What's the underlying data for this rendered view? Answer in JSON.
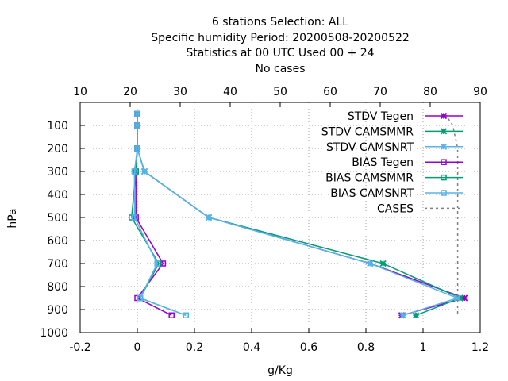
{
  "chart_data": {
    "type": "line",
    "title_lines": [
      "6 stations Selection: ALL",
      "Specific humidity  Period: 20200508-20200522",
      "Statistics at 00 UTC  Used  00 + 24",
      "No cases"
    ],
    "xlabel": "g/Kg",
    "ylabel": "hPa",
    "xlim": [
      -0.2,
      1.2
    ],
    "ylim": [
      1000,
      0
    ],
    "x_ticks": [
      "-0.2",
      "0",
      "0.2",
      "0.4",
      "0.6",
      "0.8",
      "1",
      "1.2"
    ],
    "x_tick_values": [
      -0.2,
      0,
      0.2,
      0.4,
      0.6,
      0.8,
      1.0,
      1.2
    ],
    "y_ticks": [
      "100",
      "200",
      "300",
      "400",
      "500",
      "600",
      "700",
      "800",
      "900",
      "1000"
    ],
    "y_tick_values": [
      100,
      200,
      300,
      400,
      500,
      600,
      700,
      800,
      900,
      1000
    ],
    "x2_ticks": [
      "10",
      "20",
      "30",
      "40",
      "50",
      "60",
      "70",
      "80",
      "90"
    ],
    "x2_tick_values": [
      10,
      20,
      30,
      40,
      50,
      60,
      70,
      80,
      90
    ],
    "x2lim": [
      10,
      90
    ],
    "grid": true,
    "legend_position": "top-right",
    "series": [
      {
        "name": "STDV Tegen",
        "color": "#9400d3",
        "marker": "x",
        "points": [
          [
            0.0,
            50
          ],
          [
            0.0,
            100
          ],
          [
            0.0,
            200
          ],
          [
            0.025,
            300
          ],
          [
            0.25,
            500
          ],
          [
            0.815,
            700
          ],
          [
            1.145,
            850
          ],
          [
            0.925,
            925
          ]
        ]
      },
      {
        "name": "STDV CAMSMMR",
        "color": "#009e73",
        "marker": "x",
        "points": [
          [
            0.0,
            50
          ],
          [
            0.0,
            100
          ],
          [
            0.0,
            200
          ],
          [
            0.025,
            300
          ],
          [
            0.25,
            500
          ],
          [
            0.86,
            700
          ],
          [
            1.13,
            850
          ],
          [
            0.975,
            925
          ]
        ]
      },
      {
        "name": "STDV CAMSNRT",
        "color": "#56b4e9",
        "marker": "x",
        "points": [
          [
            0.0,
            50
          ],
          [
            0.0,
            100
          ],
          [
            0.0,
            200
          ],
          [
            0.025,
            300
          ],
          [
            0.25,
            500
          ],
          [
            0.815,
            700
          ],
          [
            1.12,
            850
          ],
          [
            0.93,
            925
          ]
        ]
      },
      {
        "name": "BIAS Tegen",
        "color": "#9400d3",
        "marker": "square",
        "points": [
          [
            0.0,
            50
          ],
          [
            0.0,
            100
          ],
          [
            0.0,
            200
          ],
          [
            -0.005,
            300
          ],
          [
            -0.005,
            500
          ],
          [
            0.09,
            700
          ],
          [
            0.0,
            850
          ],
          [
            0.12,
            925
          ]
        ]
      },
      {
        "name": "BIAS CAMSMMR",
        "color": "#009e73",
        "marker": "square",
        "points": [
          [
            0.0,
            50
          ],
          [
            0.0,
            100
          ],
          [
            0.0,
            200
          ],
          [
            -0.005,
            300
          ],
          [
            -0.02,
            500
          ],
          [
            0.075,
            700
          ],
          [
            0.01,
            850
          ],
          [
            0.17,
            925
          ]
        ]
      },
      {
        "name": "BIAS CAMSNRT",
        "color": "#56b4e9",
        "marker": "square",
        "points": [
          [
            0.0,
            50
          ],
          [
            0.0,
            100
          ],
          [
            0.0,
            200
          ],
          [
            -0.01,
            300
          ],
          [
            -0.01,
            500
          ],
          [
            0.07,
            700
          ],
          [
            0.01,
            850
          ],
          [
            0.17,
            925
          ]
        ]
      },
      {
        "name": "CASES",
        "color": "#808080",
        "marker": "none",
        "dashed": true,
        "axis": "x2",
        "points": [
          [
            83,
            50
          ],
          [
            84.5,
            100
          ],
          [
            85.5,
            200
          ],
          [
            85.5,
            300
          ],
          [
            85.5,
            500
          ],
          [
            85.5,
            700
          ],
          [
            85.5,
            850
          ],
          [
            85.5,
            925
          ]
        ]
      }
    ]
  }
}
